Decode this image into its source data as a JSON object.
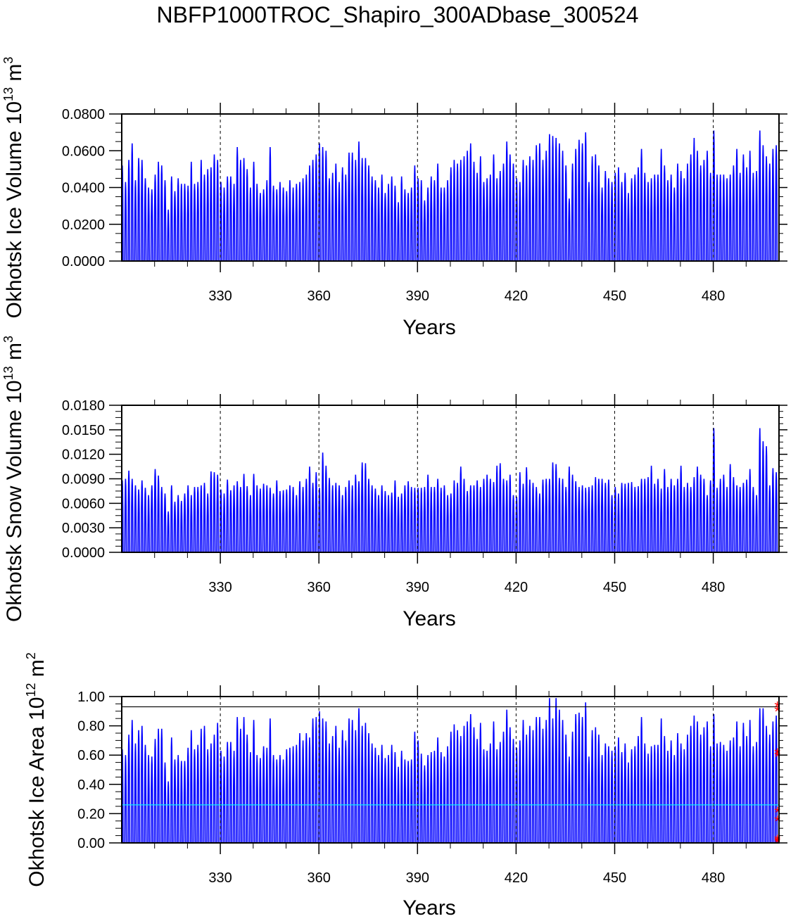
{
  "figure": {
    "title": "NBFP1000TROC_Shapiro_300ADbase_300524"
  },
  "chart_data": [
    {
      "type": "line",
      "panel": "ice-volume",
      "ylabel_main": "Okhotsk Ice Volume 10",
      "ylabel_exp": "13",
      "ylabel_unit": " m",
      "ylabel_unit_exp": "3",
      "xlabel": "Years",
      "xlim": [
        300,
        500
      ],
      "ylim": [
        0,
        0.08
      ],
      "xticks": [
        "330",
        "360",
        "390",
        "420",
        "450",
        "480"
      ],
      "xtick_values": [
        330,
        360,
        390,
        420,
        450,
        480
      ],
      "yticks": [
        "0.0000",
        "0.0200",
        "0.0400",
        "0.0600",
        "0.0800"
      ],
      "ytick_values": [
        0,
        0.02,
        0.04,
        0.06,
        0.08
      ],
      "ref_lines": [],
      "series": [
        {
          "name": "monthly ice volume",
          "color": "#0000ff",
          "seasonal_minimum": 0.0,
          "annual_maxima_start_year": 301,
          "annual_maxima": [
            0.052,
            0.043,
            0.055,
            0.064,
            0.044,
            0.056,
            0.055,
            0.045,
            0.04,
            0.039,
            0.047,
            0.054,
            0.052,
            0.044,
            0.028,
            0.046,
            0.038,
            0.045,
            0.042,
            0.042,
            0.041,
            0.054,
            0.042,
            0.043,
            0.055,
            0.047,
            0.05,
            0.051,
            0.058,
            0.055,
            0.043,
            0.04,
            0.046,
            0.046,
            0.042,
            0.062,
            0.055,
            0.056,
            0.05,
            0.04,
            0.054,
            0.042,
            0.037,
            0.039,
            0.044,
            0.062,
            0.041,
            0.039,
            0.043,
            0.04,
            0.038,
            0.044,
            0.04,
            0.042,
            0.043,
            0.045,
            0.047,
            0.052,
            0.055,
            0.058,
            0.064,
            0.062,
            0.06,
            0.045,
            0.048,
            0.053,
            0.043,
            0.051,
            0.047,
            0.059,
            0.059,
            0.055,
            0.065,
            0.056,
            0.056,
            0.052,
            0.046,
            0.044,
            0.04,
            0.047,
            0.037,
            0.042,
            0.046,
            0.041,
            0.032,
            0.046,
            0.039,
            0.037,
            0.04,
            0.052,
            0.045,
            0.044,
            0.033,
            0.04,
            0.046,
            0.044,
            0.053,
            0.04,
            0.04,
            0.044,
            0.051,
            0.055,
            0.053,
            0.055,
            0.057,
            0.06,
            0.064,
            0.054,
            0.048,
            0.057,
            0.043,
            0.045,
            0.047,
            0.058,
            0.045,
            0.049,
            0.053,
            0.065,
            0.058,
            0.053,
            0.045,
            0.043,
            0.055,
            0.052,
            0.057,
            0.055,
            0.063,
            0.064,
            0.055,
            0.06,
            0.069,
            0.068,
            0.067,
            0.064,
            0.06,
            0.052,
            0.034,
            0.053,
            0.061,
            0.066,
            0.064,
            0.07,
            0.043,
            0.057,
            0.058,
            0.052,
            0.04,
            0.049,
            0.045,
            0.043,
            0.048,
            0.051,
            0.043,
            0.048,
            0.037,
            0.045,
            0.047,
            0.051,
            0.061,
            0.048,
            0.043,
            0.045,
            0.047,
            0.047,
            0.061,
            0.052,
            0.044,
            0.047,
            0.04,
            0.053,
            0.049,
            0.045,
            0.053,
            0.058,
            0.067,
            0.06,
            0.052,
            0.055,
            0.06,
            0.048,
            0.071,
            0.047,
            0.047,
            0.047,
            0.045,
            0.047,
            0.052,
            0.061,
            0.048,
            0.058,
            0.051,
            0.06,
            0.048,
            0.049,
            0.071,
            0.063,
            0.057,
            0.053,
            0.061,
            0.063
          ]
        }
      ]
    },
    {
      "type": "line",
      "panel": "snow-volume",
      "ylabel_main": "Okhotsk Snow Volume 10",
      "ylabel_exp": "13",
      "ylabel_unit": " m",
      "ylabel_unit_exp": "3",
      "xlabel": "Years",
      "xlim": [
        300,
        500
      ],
      "ylim": [
        0,
        0.018
      ],
      "xticks": [
        "330",
        "360",
        "390",
        "420",
        "450",
        "480"
      ],
      "xtick_values": [
        330,
        360,
        390,
        420,
        450,
        480
      ],
      "yticks": [
        "0.0000",
        "0.0030",
        "0.0060",
        "0.0090",
        "0.0120",
        "0.0150",
        "0.0180"
      ],
      "ytick_values": [
        0,
        0.003,
        0.006,
        0.009,
        0.012,
        0.015,
        0.018
      ],
      "ref_lines": [],
      "series": [
        {
          "name": "monthly snow volume",
          "color": "#0000ff",
          "seasonal_minimum": 0.0,
          "annual_maxima_start_year": 301,
          "annual_maxima": [
            0.0088,
            0.009,
            0.01,
            0.009,
            0.0082,
            0.0077,
            0.0088,
            0.0079,
            0.007,
            0.0082,
            0.0102,
            0.0094,
            0.008,
            0.0072,
            0.005,
            0.0082,
            0.0062,
            0.007,
            0.0063,
            0.0072,
            0.0082,
            0.007,
            0.008,
            0.008,
            0.0082,
            0.0085,
            0.0072,
            0.0099,
            0.0098,
            0.0095,
            0.0077,
            0.0072,
            0.0089,
            0.0076,
            0.0082,
            0.0087,
            0.008,
            0.0096,
            0.0081,
            0.007,
            0.0096,
            0.0082,
            0.0078,
            0.0084,
            0.0082,
            0.0079,
            0.0072,
            0.0088,
            0.0075,
            0.0076,
            0.0077,
            0.0082,
            0.008,
            0.007,
            0.0087,
            0.008,
            0.009,
            0.0105,
            0.0085,
            0.0098,
            0.0079,
            0.0122,
            0.0106,
            0.0091,
            0.0082,
            0.0085,
            0.0082,
            0.007,
            0.008,
            0.0088,
            0.0082,
            0.0095,
            0.0087,
            0.011,
            0.0109,
            0.009,
            0.0082,
            0.0078,
            0.007,
            0.0082,
            0.0075,
            0.007,
            0.0073,
            0.0088,
            0.0068,
            0.0072,
            0.0082,
            0.0087,
            0.008,
            0.0079,
            0.0079,
            0.0079,
            0.008,
            0.0095,
            0.008,
            0.008,
            0.009,
            0.0079,
            0.0082,
            0.007,
            0.0072,
            0.0088,
            0.0085,
            0.0105,
            0.009,
            0.0075,
            0.0082,
            0.0082,
            0.0088,
            0.008,
            0.009,
            0.0095,
            0.009,
            0.0086,
            0.0106,
            0.0109,
            0.009,
            0.0088,
            0.0095,
            0.007,
            0.0068,
            0.0098,
            0.0084,
            0.0104,
            0.0089,
            0.0085,
            0.008,
            0.0072,
            0.0089,
            0.009,
            0.009,
            0.011,
            0.0108,
            0.0091,
            0.009,
            0.008,
            0.0105,
            0.0095,
            0.0087,
            0.008,
            0.0082,
            0.0079,
            0.008,
            0.0082,
            0.0092,
            0.009,
            0.009,
            0.0085,
            0.0089,
            0.007,
            0.008,
            0.0072,
            0.0085,
            0.0084,
            0.0085,
            0.0086,
            0.008,
            0.0081,
            0.009,
            0.009,
            0.0092,
            0.0106,
            0.0084,
            0.009,
            0.0078,
            0.0102,
            0.008,
            0.009,
            0.0082,
            0.009,
            0.0106,
            0.008,
            0.0085,
            0.008,
            0.0092,
            0.0105,
            0.0095,
            0.009,
            0.007,
            0.0088,
            0.0152,
            0.0079,
            0.009,
            0.0095,
            0.008,
            0.0108,
            0.0092,
            0.0082,
            0.008,
            0.0085,
            0.0089,
            0.0102,
            0.008,
            0.007,
            0.0152,
            0.0136,
            0.013,
            0.0082,
            0.0103,
            0.0098
          ]
        }
      ]
    },
    {
      "type": "line",
      "panel": "ice-area",
      "ylabel_main": "Okhotsk Ice Area 10",
      "ylabel_exp": "12",
      "ylabel_unit": " m",
      "ylabel_unit_exp": "2",
      "xlabel": "Years",
      "xlim": [
        300,
        500
      ],
      "ylim": [
        0,
        1.0
      ],
      "xticks": [
        "330",
        "360",
        "390",
        "420",
        "450",
        "480"
      ],
      "xtick_values": [
        330,
        360,
        390,
        420,
        450,
        480
      ],
      "yticks": [
        "0.00",
        "0.20",
        "0.40",
        "0.60",
        "0.80",
        "1.00"
      ],
      "ytick_values": [
        0,
        0.2,
        0.4,
        0.6,
        0.8,
        1.0
      ],
      "ref_lines": [
        {
          "name": "max-reference",
          "value": 0.93,
          "color": "#000000"
        },
        {
          "name": "mean-reference",
          "value": 0.26,
          "color": "#00ffff"
        }
      ],
      "markers": {
        "color": "#ff0000",
        "symbol": "*",
        "x": 499.5,
        "y": [
          0.93,
          0.9,
          0.61,
          0.59,
          0.21,
          0.15,
          0.02,
          0.01,
          0.0
        ]
      },
      "series": [
        {
          "name": "monthly ice area",
          "color": "#0000ff",
          "seasonal_minimum": 0.0,
          "annual_maxima_start_year": 301,
          "annual_maxima": [
            0.64,
            0.6,
            0.74,
            0.84,
            0.68,
            0.77,
            0.8,
            0.67,
            0.6,
            0.59,
            0.71,
            0.78,
            0.78,
            0.55,
            0.42,
            0.72,
            0.57,
            0.6,
            0.56,
            0.56,
            0.65,
            0.77,
            0.64,
            0.67,
            0.78,
            0.8,
            0.64,
            0.68,
            0.74,
            0.82,
            0.63,
            0.59,
            0.69,
            0.69,
            0.63,
            0.86,
            0.78,
            0.86,
            0.74,
            0.62,
            0.84,
            0.6,
            0.58,
            0.66,
            0.65,
            0.85,
            0.6,
            0.57,
            0.6,
            0.57,
            0.64,
            0.65,
            0.66,
            0.67,
            0.75,
            0.7,
            0.75,
            0.72,
            0.85,
            0.86,
            0.9,
            0.85,
            0.83,
            0.68,
            0.73,
            0.8,
            0.65,
            0.77,
            0.7,
            0.85,
            0.84,
            0.77,
            0.92,
            0.8,
            0.82,
            0.75,
            0.68,
            0.65,
            0.6,
            0.67,
            0.58,
            0.6,
            0.67,
            0.62,
            0.52,
            0.63,
            0.57,
            0.56,
            0.57,
            0.76,
            0.7,
            0.61,
            0.53,
            0.6,
            0.62,
            0.63,
            0.72,
            0.62,
            0.59,
            0.66,
            0.76,
            0.81,
            0.77,
            0.73,
            0.8,
            0.83,
            0.88,
            0.79,
            0.71,
            0.82,
            0.64,
            0.63,
            0.68,
            0.83,
            0.64,
            0.69,
            0.76,
            0.91,
            0.79,
            0.71,
            0.65,
            0.7,
            0.84,
            0.74,
            0.8,
            0.77,
            0.86,
            0.86,
            0.78,
            0.84,
            0.99,
            0.85,
            0.99,
            0.91,
            0.84,
            0.74,
            0.59,
            0.76,
            0.88,
            0.89,
            0.86,
            0.96,
            0.59,
            0.77,
            0.79,
            0.74,
            0.6,
            0.68,
            0.66,
            0.63,
            0.66,
            0.72,
            0.62,
            0.68,
            0.55,
            0.64,
            0.66,
            0.73,
            0.86,
            0.68,
            0.61,
            0.66,
            0.67,
            0.67,
            0.85,
            0.73,
            0.63,
            0.7,
            0.6,
            0.75,
            0.68,
            0.64,
            0.74,
            0.8,
            0.87,
            0.83,
            0.74,
            0.79,
            0.83,
            0.66,
            0.88,
            0.68,
            0.69,
            0.67,
            0.63,
            0.7,
            0.72,
            0.83,
            0.66,
            0.82,
            0.73,
            0.84,
            0.66,
            0.69,
            0.92,
            0.92,
            0.8,
            0.74,
            0.83,
            0.87
          ]
        }
      ]
    }
  ]
}
